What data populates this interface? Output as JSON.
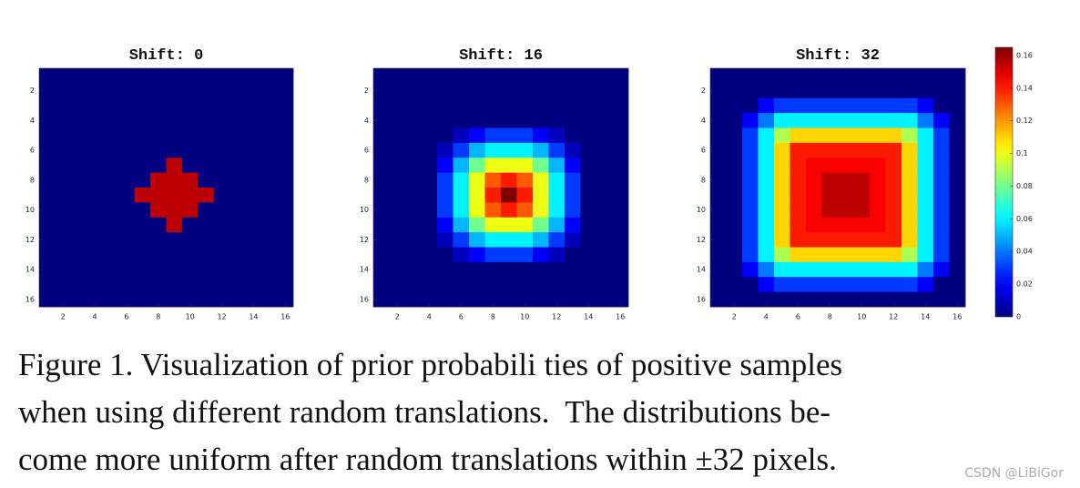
{
  "chart_data": [
    {
      "type": "heatmap",
      "title": "Shift: 0",
      "xlim": [
        0.5,
        16.5
      ],
      "ylim": [
        0.5,
        16.5
      ],
      "xticks": [
        2,
        4,
        6,
        8,
        10,
        12,
        14,
        16
      ],
      "yticks": [
        2,
        4,
        6,
        8,
        10,
        12,
        14,
        16
      ],
      "z": [
        [
          0,
          0,
          0,
          0,
          0,
          0,
          0,
          0,
          0,
          0,
          0,
          0,
          0,
          0,
          0,
          0
        ],
        [
          0,
          0,
          0,
          0,
          0,
          0,
          0,
          0,
          0,
          0,
          0,
          0,
          0,
          0,
          0,
          0
        ],
        [
          0,
          0,
          0,
          0,
          0,
          0,
          0,
          0,
          0,
          0,
          0,
          0,
          0,
          0,
          0,
          0
        ],
        [
          0,
          0,
          0,
          0,
          0,
          0,
          0,
          0,
          0,
          0,
          0,
          0,
          0,
          0,
          0,
          0
        ],
        [
          0,
          0,
          0,
          0,
          0,
          0,
          0,
          0,
          0,
          0,
          0,
          0,
          0,
          0,
          0,
          0
        ],
        [
          0,
          0,
          0,
          0,
          0,
          0,
          0,
          0,
          0,
          0,
          0,
          0,
          0,
          0,
          0,
          0
        ],
        [
          0,
          0,
          0,
          0,
          0,
          0,
          0,
          0,
          0.155,
          0,
          0,
          0,
          0,
          0,
          0,
          0
        ],
        [
          0,
          0,
          0,
          0,
          0,
          0,
          0,
          0.155,
          0.155,
          0.155,
          0,
          0,
          0,
          0,
          0,
          0
        ],
        [
          0,
          0,
          0,
          0,
          0,
          0,
          0.155,
          0.155,
          0.155,
          0.155,
          0.155,
          0,
          0,
          0,
          0,
          0
        ],
        [
          0,
          0,
          0,
          0,
          0,
          0,
          0,
          0.155,
          0.155,
          0.155,
          0,
          0,
          0,
          0,
          0,
          0
        ],
        [
          0,
          0,
          0,
          0,
          0,
          0,
          0,
          0,
          0.155,
          0,
          0,
          0,
          0,
          0,
          0,
          0
        ],
        [
          0,
          0,
          0,
          0,
          0,
          0,
          0,
          0,
          0,
          0,
          0,
          0,
          0,
          0,
          0,
          0
        ],
        [
          0,
          0,
          0,
          0,
          0,
          0,
          0,
          0,
          0,
          0,
          0,
          0,
          0,
          0,
          0,
          0
        ],
        [
          0,
          0,
          0,
          0,
          0,
          0,
          0,
          0,
          0,
          0,
          0,
          0,
          0,
          0,
          0,
          0
        ],
        [
          0,
          0,
          0,
          0,
          0,
          0,
          0,
          0,
          0,
          0,
          0,
          0,
          0,
          0,
          0,
          0
        ],
        [
          0,
          0,
          0,
          0,
          0,
          0,
          0,
          0,
          0,
          0,
          0,
          0,
          0,
          0,
          0,
          0
        ]
      ]
    },
    {
      "type": "heatmap",
      "title": "Shift: 16",
      "xlim": [
        0.5,
        16.5
      ],
      "ylim": [
        0.5,
        16.5
      ],
      "xticks": [
        2,
        4,
        6,
        8,
        10,
        12,
        14,
        16
      ],
      "yticks": [
        2,
        4,
        6,
        8,
        10,
        12,
        14,
        16
      ],
      "z": [
        [
          0,
          0,
          0,
          0,
          0,
          0,
          0,
          0,
          0,
          0,
          0,
          0,
          0,
          0,
          0,
          0
        ],
        [
          0,
          0,
          0,
          0,
          0,
          0,
          0,
          0,
          0,
          0,
          0,
          0,
          0,
          0,
          0,
          0
        ],
        [
          0,
          0,
          0,
          0,
          0,
          0,
          0,
          0,
          0,
          0,
          0,
          0,
          0,
          0,
          0,
          0
        ],
        [
          0,
          0,
          0,
          0,
          0,
          0,
          0,
          0,
          0,
          0,
          0,
          0,
          0,
          0,
          0,
          0
        ],
        [
          0,
          0,
          0,
          0,
          0,
          0.01,
          0.02,
          0.03,
          0.03,
          0.03,
          0.02,
          0.01,
          0,
          0,
          0,
          0
        ],
        [
          0,
          0,
          0,
          0,
          0.01,
          0.03,
          0.05,
          0.06,
          0.06,
          0.06,
          0.05,
          0.03,
          0.01,
          0,
          0,
          0
        ],
        [
          0,
          0,
          0,
          0,
          0.02,
          0.05,
          0.08,
          0.1,
          0.1,
          0.1,
          0.08,
          0.05,
          0.02,
          0,
          0,
          0
        ],
        [
          0,
          0,
          0,
          0,
          0.03,
          0.06,
          0.1,
          0.13,
          0.14,
          0.13,
          0.1,
          0.06,
          0.03,
          0,
          0,
          0
        ],
        [
          0,
          0,
          0,
          0,
          0.03,
          0.06,
          0.1,
          0.14,
          0.165,
          0.14,
          0.1,
          0.06,
          0.03,
          0,
          0,
          0
        ],
        [
          0,
          0,
          0,
          0,
          0.03,
          0.06,
          0.1,
          0.13,
          0.14,
          0.13,
          0.1,
          0.06,
          0.03,
          0,
          0,
          0
        ],
        [
          0,
          0,
          0,
          0,
          0.02,
          0.05,
          0.08,
          0.1,
          0.1,
          0.1,
          0.08,
          0.05,
          0.02,
          0,
          0,
          0
        ],
        [
          0,
          0,
          0,
          0,
          0.01,
          0.03,
          0.05,
          0.06,
          0.06,
          0.06,
          0.05,
          0.03,
          0.01,
          0,
          0,
          0
        ],
        [
          0,
          0,
          0,
          0,
          0,
          0.01,
          0.02,
          0.03,
          0.03,
          0.03,
          0.02,
          0.01,
          0,
          0,
          0,
          0
        ],
        [
          0,
          0,
          0,
          0,
          0,
          0,
          0,
          0,
          0,
          0,
          0,
          0,
          0,
          0,
          0,
          0
        ],
        [
          0,
          0,
          0,
          0,
          0,
          0,
          0,
          0,
          0,
          0,
          0,
          0,
          0,
          0,
          0,
          0
        ],
        [
          0,
          0,
          0,
          0,
          0,
          0,
          0,
          0,
          0,
          0,
          0,
          0,
          0,
          0,
          0,
          0
        ]
      ]
    },
    {
      "type": "heatmap",
      "title": "Shift: 32",
      "xlim": [
        0.5,
        16.5
      ],
      "ylim": [
        0.5,
        16.5
      ],
      "xticks": [
        2,
        4,
        6,
        8,
        10,
        12,
        14,
        16
      ],
      "yticks": [
        2,
        4,
        6,
        8,
        10,
        12,
        14,
        16
      ],
      "z": [
        [
          0,
          0,
          0,
          0,
          0,
          0,
          0,
          0,
          0,
          0,
          0,
          0,
          0,
          0,
          0,
          0
        ],
        [
          0,
          0,
          0,
          0,
          0,
          0,
          0,
          0,
          0,
          0,
          0,
          0,
          0,
          0,
          0,
          0
        ],
        [
          0,
          0,
          0,
          0.02,
          0.03,
          0.03,
          0.03,
          0.03,
          0.03,
          0.03,
          0.03,
          0.03,
          0.03,
          0.02,
          0,
          0
        ],
        [
          0,
          0,
          0.02,
          0.04,
          0.06,
          0.06,
          0.06,
          0.06,
          0.06,
          0.06,
          0.06,
          0.06,
          0.06,
          0.04,
          0.02,
          0
        ],
        [
          0,
          0,
          0.03,
          0.06,
          0.09,
          0.11,
          0.11,
          0.11,
          0.11,
          0.11,
          0.11,
          0.11,
          0.09,
          0.06,
          0.03,
          0
        ],
        [
          0,
          0,
          0.03,
          0.06,
          0.11,
          0.14,
          0.14,
          0.14,
          0.14,
          0.14,
          0.14,
          0.14,
          0.11,
          0.06,
          0.03,
          0
        ],
        [
          0,
          0,
          0.03,
          0.06,
          0.11,
          0.14,
          0.145,
          0.145,
          0.145,
          0.145,
          0.145,
          0.14,
          0.11,
          0.06,
          0.03,
          0
        ],
        [
          0,
          0,
          0.03,
          0.06,
          0.11,
          0.14,
          0.145,
          0.155,
          0.155,
          0.155,
          0.145,
          0.14,
          0.11,
          0.06,
          0.03,
          0
        ],
        [
          0,
          0,
          0.03,
          0.06,
          0.11,
          0.14,
          0.145,
          0.155,
          0.155,
          0.155,
          0.145,
          0.14,
          0.11,
          0.06,
          0.03,
          0
        ],
        [
          0,
          0,
          0.03,
          0.06,
          0.11,
          0.14,
          0.145,
          0.155,
          0.155,
          0.155,
          0.145,
          0.14,
          0.11,
          0.06,
          0.03,
          0
        ],
        [
          0,
          0,
          0.03,
          0.06,
          0.11,
          0.14,
          0.145,
          0.145,
          0.145,
          0.145,
          0.145,
          0.14,
          0.11,
          0.06,
          0.03,
          0
        ],
        [
          0,
          0,
          0.03,
          0.06,
          0.11,
          0.14,
          0.14,
          0.14,
          0.14,
          0.14,
          0.14,
          0.14,
          0.11,
          0.06,
          0.03,
          0
        ],
        [
          0,
          0,
          0.03,
          0.06,
          0.09,
          0.11,
          0.11,
          0.11,
          0.11,
          0.11,
          0.11,
          0.11,
          0.09,
          0.06,
          0.03,
          0
        ],
        [
          0,
          0,
          0.02,
          0.04,
          0.06,
          0.06,
          0.06,
          0.06,
          0.06,
          0.06,
          0.06,
          0.06,
          0.06,
          0.04,
          0.02,
          0
        ],
        [
          0,
          0,
          0,
          0.02,
          0.03,
          0.03,
          0.03,
          0.03,
          0.03,
          0.03,
          0.03,
          0.03,
          0.03,
          0.02,
          0,
          0
        ],
        [
          0,
          0,
          0,
          0,
          0,
          0,
          0,
          0,
          0,
          0,
          0,
          0,
          0,
          0,
          0,
          0
        ]
      ]
    }
  ],
  "colorbar": {
    "colormap": "jet",
    "clim": [
      0,
      0.165
    ],
    "ticks": [
      0,
      0.02,
      0.04,
      0.06,
      0.08,
      0.1,
      0.12,
      0.14,
      0.16
    ]
  },
  "caption": {
    "lines": [
      "Figure 1. Visualization of prior probabili ties of positive samples",
      "when using different random translations.  The distributions be-",
      "come more uniform after random translations within ±32 pixels."
    ]
  },
  "watermark": "CSDN @LiBiGor"
}
